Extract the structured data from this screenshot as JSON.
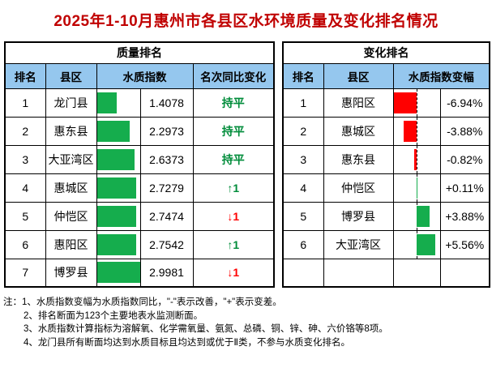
{
  "title": "2025年1-10月惠州市各县区水环境质量及变化排名情况",
  "colors": {
    "header_bg": "#95C7EE",
    "bar_green": "#15AD4D",
    "bar_red": "#FF0000",
    "text_green": "#008C3A",
    "text_red": "#FF0000",
    "title_color": "#C00000"
  },
  "left_table": {
    "title": "质量排名",
    "headers": {
      "rank": "排名",
      "district": "县区",
      "index": "水质指数",
      "change": "名次同比变化"
    },
    "rows": [
      {
        "rank": "1",
        "district": "龙门县",
        "index": 1.4078,
        "index_display": "1.4078",
        "trend_label": "持平",
        "trend": "flat"
      },
      {
        "rank": "2",
        "district": "惠东县",
        "index": 2.2973,
        "index_display": "2.2973",
        "trend_label": "持平",
        "trend": "flat"
      },
      {
        "rank": "3",
        "district": "大亚湾区",
        "index": 2.6373,
        "index_display": "2.6373",
        "trend_label": "持平",
        "trend": "flat"
      },
      {
        "rank": "4",
        "district": "惠城区",
        "index": 2.7279,
        "index_display": "2.7279",
        "trend_label": "↑1",
        "trend": "up"
      },
      {
        "rank": "5",
        "district": "仲恺区",
        "index": 2.7474,
        "index_display": "2.7474",
        "trend_label": "↓1",
        "trend": "down"
      },
      {
        "rank": "6",
        "district": "惠阳区",
        "index": 2.7542,
        "index_display": "2.7542",
        "trend_label": "↑1",
        "trend": "up"
      },
      {
        "rank": "7",
        "district": "博罗县",
        "index": 2.9981,
        "index_display": "2.9981",
        "trend_label": "↓1",
        "trend": "down"
      }
    ]
  },
  "right_table": {
    "title": "变化排名",
    "headers": {
      "rank": "排名",
      "district": "县区",
      "change": "水质指数变幅"
    },
    "rows": [
      {
        "rank": "1",
        "district": "惠阳区",
        "change_pct": -6.94,
        "change_display": "-6.94%"
      },
      {
        "rank": "2",
        "district": "惠城区",
        "change_pct": -3.88,
        "change_display": "-3.88%"
      },
      {
        "rank": "3",
        "district": "惠东县",
        "change_pct": -0.82,
        "change_display": "-0.82%"
      },
      {
        "rank": "4",
        "district": "仲恺区",
        "change_pct": 0.11,
        "change_display": "+0.11%"
      },
      {
        "rank": "5",
        "district": "博罗县",
        "change_pct": 3.88,
        "change_display": "+3.88%"
      },
      {
        "rank": "6",
        "district": "大亚湾区",
        "change_pct": 5.56,
        "change_display": "+5.56%"
      }
    ]
  },
  "notes": {
    "line1": "注：1、水质指数变幅为水质指数同比，\"-\"表示改善，\"+\"表示变差。",
    "line2": "2、排名断面为123个主要地表水监测断面。",
    "line3": "3、水质指数计算指标为溶解氧、化学需氧量、氨氮、总磷、铜、锌、砷、六价铬等8项。",
    "line4": "4、龙门县所有断面均达到水质目标且均达到或优于Ⅱ类，不参与水质变化排名。"
  },
  "chart_data": [
    {
      "type": "bar",
      "title": "质量排名（水质指数）",
      "orientation": "horizontal",
      "categories": [
        "龙门县",
        "惠东县",
        "大亚湾区",
        "惠城区",
        "仲恺区",
        "惠阳区",
        "博罗县"
      ],
      "values": [
        1.4078,
        2.2973,
        2.6373,
        2.7279,
        2.7474,
        2.7542,
        2.9981
      ],
      "xlabel": "水质指数",
      "ylabel": "县区",
      "xlim": [
        0,
        2.9981
      ],
      "bar_color": "#15AD4D",
      "grid": false,
      "legend": false
    },
    {
      "type": "bar",
      "title": "变化排名（水质指数变幅 %）",
      "orientation": "horizontal",
      "categories": [
        "惠阳区",
        "惠城区",
        "惠东县",
        "仲恺区",
        "博罗县",
        "大亚湾区"
      ],
      "values": [
        -6.94,
        -3.88,
        -0.82,
        0.11,
        3.88,
        5.56
      ],
      "xlabel": "水质指数变幅(%)",
      "ylabel": "县区",
      "xlim": [
        -6.94,
        6.94
      ],
      "neg_color": "#FF0000",
      "pos_color": "#15AD4D",
      "zero_axis": "dashed",
      "grid": false,
      "legend": false
    }
  ]
}
